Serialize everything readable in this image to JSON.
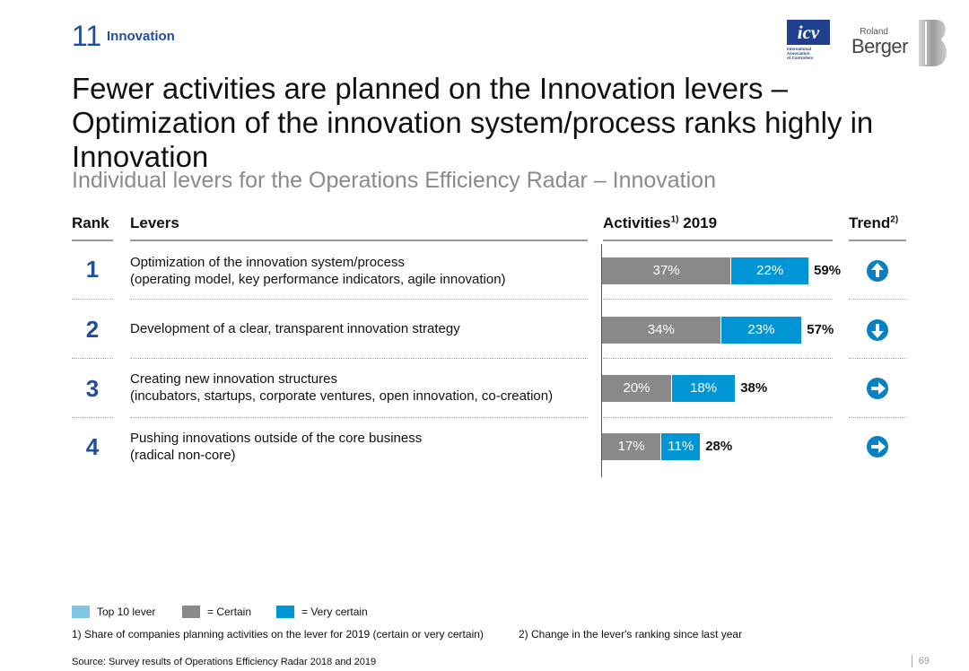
{
  "header": {
    "section_number": "11",
    "section_name": "Innovation"
  },
  "logos": {
    "icv": {
      "mark": "icv",
      "text": [
        "International",
        "Association",
        "of Controllers"
      ]
    },
    "roland_berger": {
      "line1": "Roland",
      "line2": "Berger"
    }
  },
  "title": "Fewer activities are planned on the Innovation levers – Optimization of the innovation system/process ranks highly in Innovation",
  "subtitle": "Individual levers for the Operations Efficiency Radar – Innovation",
  "table": {
    "col_rank": "Rank",
    "col_levers": "Levers",
    "col_activities": "Activities",
    "col_activities_sup": "1)",
    "col_activities_year": "2019",
    "col_trend": "Trend",
    "col_trend_sup": "2)"
  },
  "chart_data": {
    "type": "bar",
    "orientation": "horizontal",
    "stacked": true,
    "categories": [
      "Optimization of the innovation system/process (operating model, key performance indicators, agile innovation)",
      "Development of a clear, transparent innovation strategy",
      "Creating new innovation structures (incubators, startups, corporate ventures, open innovation, co-creation)",
      "Pushing innovations outside of the core business (radical non-core)"
    ],
    "series": [
      {
        "name": "Certain",
        "values": [
          37,
          34,
          20,
          17
        ],
        "color": "#898989"
      },
      {
        "name": "Very certain",
        "values": [
          22,
          23,
          18,
          11
        ],
        "color": "#0096d6"
      }
    ],
    "totals": [
      59,
      57,
      38,
      28
    ],
    "unit": "%"
  },
  "rows": [
    {
      "rank": "1",
      "lever_line1": "Optimization of the innovation system/process",
      "lever_line2": "(operating model, key performance indicators, agile innovation)",
      "certain_label": "37%",
      "very_certain_label": "22%",
      "total_label": "59%",
      "trend": "up",
      "trend_icon": "arrow-up-circle-icon"
    },
    {
      "rank": "2",
      "lever_line1": "Development of a clear, transparent innovation strategy",
      "lever_line2": "",
      "certain_label": "34%",
      "very_certain_label": "23%",
      "total_label": "57%",
      "trend": "down",
      "trend_icon": "arrow-down-circle-icon"
    },
    {
      "rank": "3",
      "lever_line1": "Creating new innovation structures",
      "lever_line2": "(incubators, startups, corporate ventures, open innovation, co-creation)",
      "certain_label": "20%",
      "very_certain_label": "18%",
      "total_label": "38%",
      "trend": "right",
      "trend_icon": "arrow-right-circle-icon"
    },
    {
      "rank": "4",
      "lever_line1": "Pushing innovations outside of the core business",
      "lever_line2": "(radical non-core)",
      "certain_label": "17%",
      "very_certain_label": "11%",
      "total_label": "28%",
      "trend": "right",
      "trend_icon": "arrow-right-circle-icon"
    }
  ],
  "legend": {
    "top10": "Top 10 lever",
    "top10_color": "#7fc6e6",
    "certain": "= Certain",
    "certain_color": "#898989",
    "very_certain": "= Very certain",
    "very_certain_color": "#0096d6"
  },
  "footnotes": {
    "note1": "1) Share of companies planning activities on the lever for 2019 (certain or very certain)",
    "note2": "2) Change in the lever's ranking since last year"
  },
  "source": "Source: Survey results of Operations Efficiency Radar 2018 and 2019",
  "page_number": "69",
  "colors": {
    "accent_blue": "#1f4e9c",
    "bar_grey": "#898989",
    "bar_blue": "#0096d6",
    "trend_blue": "#0a7fc2"
  }
}
